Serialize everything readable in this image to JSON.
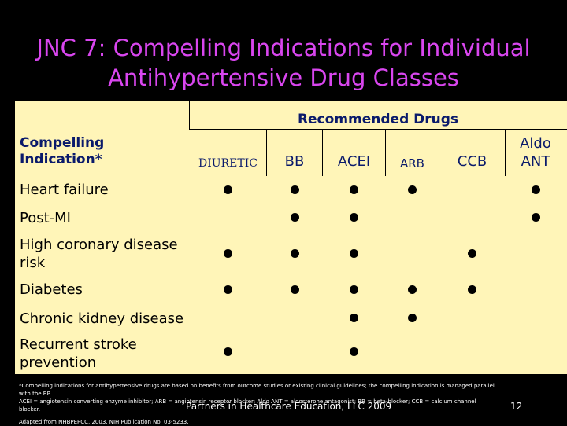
{
  "title_line1": "JNC 7: Compelling Indications for Individual",
  "title_line2": "Antihypertensive Drug Classes",
  "table": {
    "recommended_header": "Recommended Drugs",
    "indication_header_line1": "Compelling",
    "indication_header_line2": "Indication*",
    "drugs": [
      "DIURETIC",
      "BB",
      "ACEI",
      "ARB",
      "CCB",
      "Aldo ANT"
    ],
    "rows": [
      {
        "label": "Heart failure",
        "marks": [
          true,
          true,
          true,
          true,
          false,
          true
        ]
      },
      {
        "label": "Post-MI",
        "marks": [
          false,
          true,
          true,
          false,
          false,
          true
        ]
      },
      {
        "label": "High coronary disease risk",
        "marks": [
          true,
          true,
          true,
          false,
          true,
          false
        ]
      },
      {
        "label": "Diabetes",
        "marks": [
          true,
          true,
          true,
          true,
          true,
          false
        ]
      },
      {
        "label": "Chronic kidney disease",
        "marks": [
          false,
          false,
          true,
          true,
          false,
          false
        ]
      },
      {
        "label": "Recurrent stroke prevention",
        "marks": [
          true,
          false,
          true,
          false,
          false,
          false
        ]
      }
    ]
  },
  "footnote_line1": "*Compelling indications for antihypertensive drugs are based on benefits from outcome studies or existing clinical guidelines; the compelling indication is managed parallel",
  "footnote_line2": "with the BP.",
  "footnote_line3": "ACEI = angiotensin converting enzyme inhibitor; ARB = angiotensin receptor blocker; Aldo ANT = aldosterone antagonist; BB = beta-blocker; CCB = calcium channel",
  "footnote_line4": "blocker.",
  "source": "Adapted from NHBPEPCC, 2003. NIH Publication No. 03-5233.",
  "credit": "Partners in Healthcare Education, LLC 2009",
  "page_number": "12",
  "colors": {
    "title": "#d946ef",
    "table_bg": "#fff5b8",
    "header_text": "#0a1a6b"
  }
}
